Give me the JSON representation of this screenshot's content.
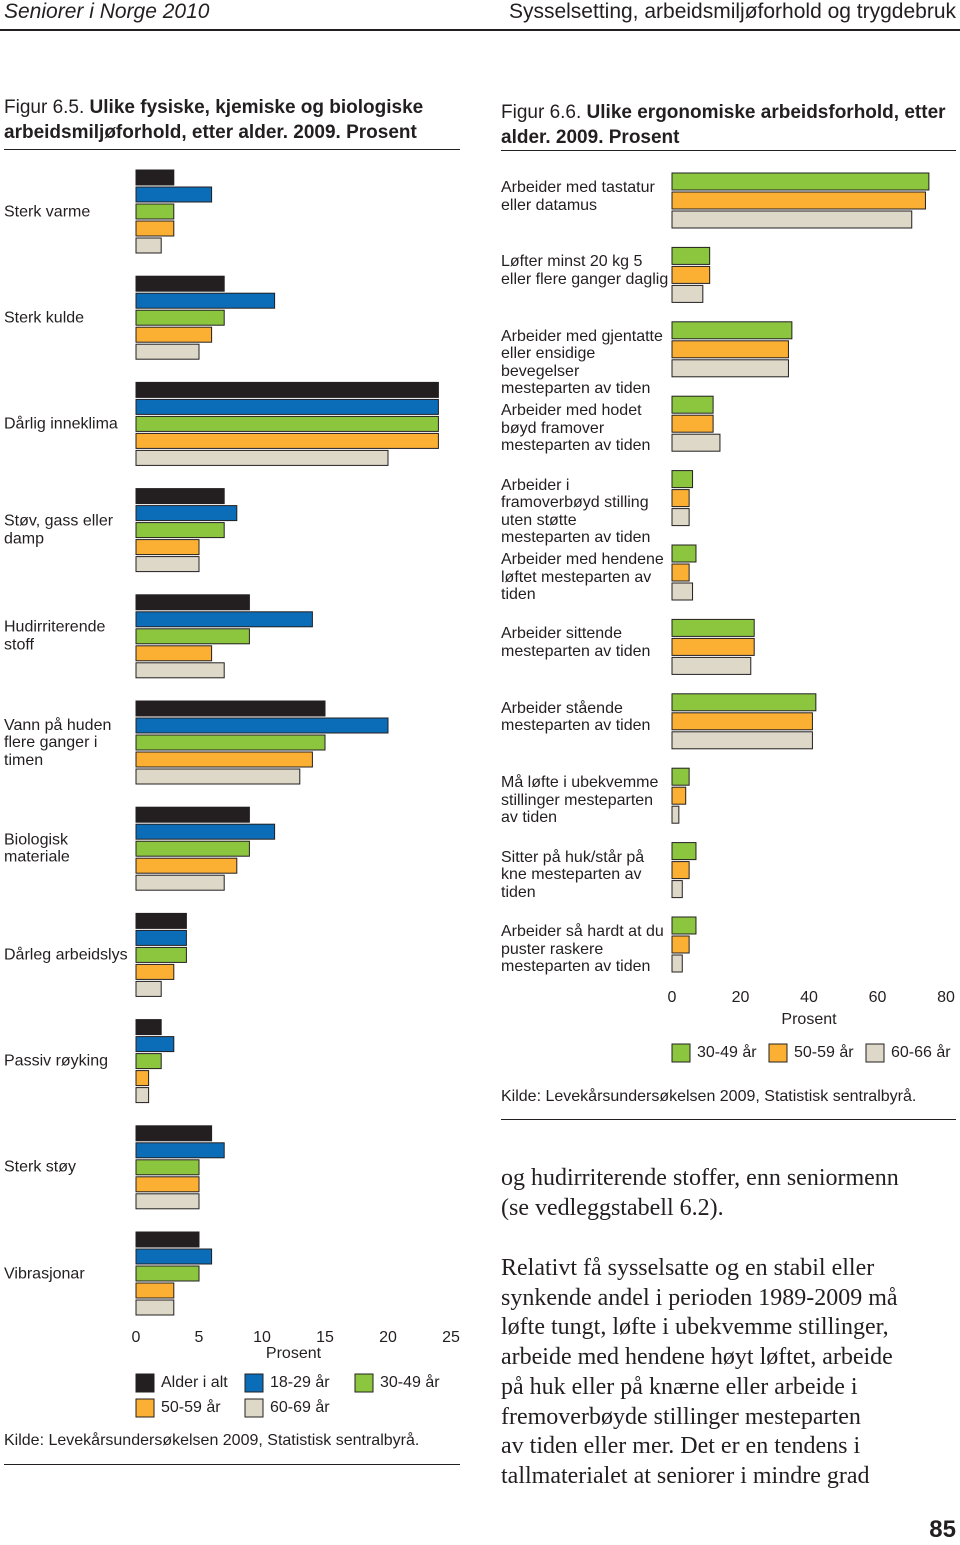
{
  "header": {
    "left": "Seniorer i Norge 2010",
    "right": "Sysselsetting, arbeidsmiljøforhold og trygdebruk"
  },
  "chart_data": [
    {
      "type": "bar",
      "orientation": "horizontal",
      "figure_label": "Figur 6.5.",
      "title": "Ulike fysiske, kjemiske og biologiske arbeidsmiljøforhold, etter alder. 2009. Prosent",
      "categories": [
        "Sterk varme",
        "Sterk kulde",
        "Dårlig inneklima",
        "Støv, gass eller damp",
        "Hudirriterende stoff",
        "Vann på huden flere ganger i timen",
        "Biologisk materiale",
        "Dårleg arbeidslys",
        "Passiv røyking",
        "Sterk støy",
        "Vibrasjonar"
      ],
      "series": [
        {
          "name": "Alder i alt",
          "color": "#231f20",
          "values": [
            3,
            7,
            24,
            7,
            9,
            15,
            9,
            4,
            2,
            6,
            5
          ]
        },
        {
          "name": "18-29 år",
          "color": "#0b6db7",
          "values": [
            6,
            11,
            24,
            8,
            14,
            20,
            11,
            4,
            3,
            7,
            6
          ]
        },
        {
          "name": "30-49 år",
          "color": "#8cc63f",
          "values": [
            3,
            7,
            24,
            7,
            9,
            15,
            9,
            4,
            2,
            5,
            5
          ]
        },
        {
          "name": "50-59 år",
          "color": "#fbb034",
          "values": [
            3,
            6,
            24,
            5,
            6,
            14,
            8,
            3,
            1,
            5,
            3
          ]
        },
        {
          "name": "60-69 år",
          "color": "#ddd8c8",
          "values": [
            2,
            5,
            20,
            5,
            7,
            13,
            7,
            2,
            1,
            5,
            3
          ]
        }
      ],
      "xlim": [
        0,
        25
      ],
      "xticks": [
        0,
        5,
        10,
        15,
        20,
        25
      ],
      "xlabel": "Prosent",
      "source": "Kilde: Levekårsundersøkelsen 2009, Statistisk sentralbyrå."
    },
    {
      "type": "bar",
      "orientation": "horizontal",
      "figure_label": "Figur 6.6.",
      "title": "Ulike ergonomiske arbeidsforhold, etter alder. 2009. Prosent",
      "categories": [
        "Arbeider med tastatur eller datamus",
        "Løfter minst 20 kg 5 eller flere ganger daglig",
        "Arbeider med gjentatte eller ensidige bevegelser mesteparten av tiden",
        "Arbeider med hodet bøyd framover mesteparten av tiden",
        "Arbeider i framoverbøyd stilling uten støtte mesteparten av tiden",
        "Arbeider med hendene løftet mesteparten av tiden",
        "Arbeider sittende mesteparten av tiden",
        "Arbeider stående mesteparten av tiden",
        "Må løfte i ubekvemme stillinger mesteparten av tiden",
        "Sitter på huk/står på kne mesteparten av tiden",
        "Arbeider så hardt at du puster raskere mesteparten av tiden"
      ],
      "series": [
        {
          "name": "30-49 år",
          "color": "#8cc63f",
          "values": [
            75,
            11,
            35,
            12,
            6,
            7,
            24,
            42,
            5,
            7,
            7
          ]
        },
        {
          "name": "50-59 år",
          "color": "#fbb034",
          "values": [
            74,
            11,
            34,
            12,
            5,
            5,
            24,
            41,
            4,
            5,
            5
          ]
        },
        {
          "name": "60-66 år",
          "color": "#ddd8c8",
          "values": [
            70,
            9,
            34,
            14,
            5,
            6,
            23,
            41,
            2,
            3,
            3
          ]
        }
      ],
      "xlim": [
        0,
        80
      ],
      "xticks": [
        0,
        20,
        40,
        60,
        80
      ],
      "xlabel": "Prosent",
      "source": "Kilde: Levekårsundersøkelsen 2009, Statistisk sentralbyrå."
    }
  ],
  "body": {
    "paragraphs": [
      [
        "og hudirriterende stoffer, enn seniormenn",
        "(se vedleggstabell 6.2)."
      ],
      [
        "Relativt få sysselsatte og en stabil eller",
        "synkende andel i perioden 1989-2009 må",
        "løfte tungt, løfte i ubekvemme stillinger,",
        "arbeide med hendene høyt løftet, arbeide",
        "på huk eller på knærne eller arbeide i",
        "fremoverbøyde stillinger mesteparten",
        "av tiden eller mer. Det er en tendens i",
        "tallmaterialet at seniorer i mindre grad"
      ]
    ]
  },
  "page_number": "85"
}
